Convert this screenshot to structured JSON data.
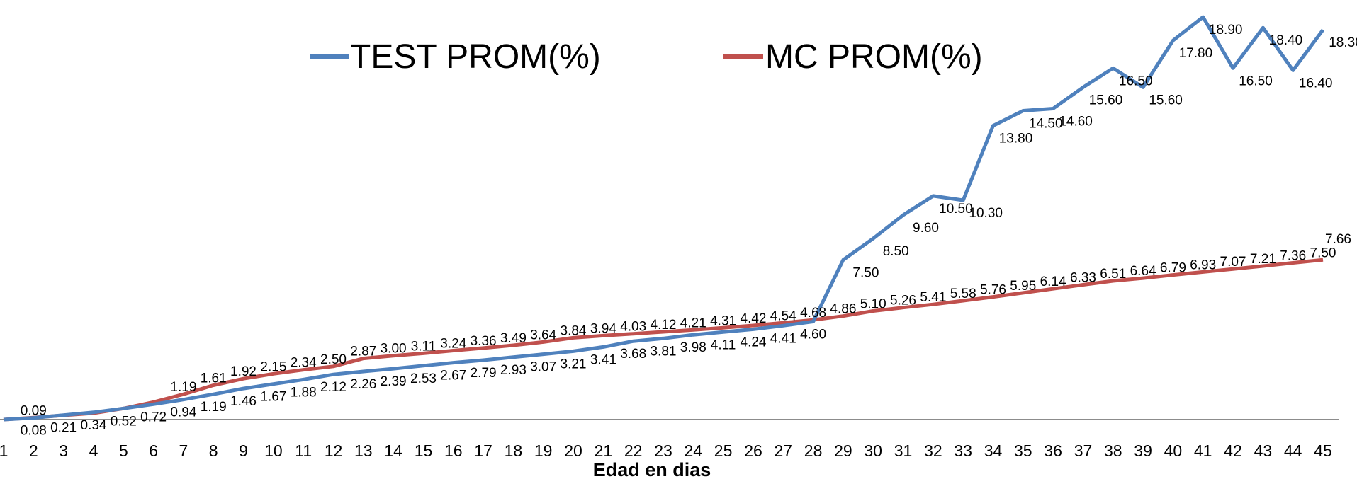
{
  "chart_data": {
    "type": "line",
    "x": [
      1,
      2,
      3,
      4,
      5,
      6,
      7,
      8,
      9,
      10,
      11,
      12,
      13,
      14,
      15,
      16,
      17,
      18,
      19,
      20,
      21,
      22,
      23,
      24,
      25,
      26,
      27,
      28,
      29,
      30,
      31,
      32,
      33,
      34,
      35,
      36,
      37,
      38,
      39,
      40,
      41,
      42,
      43,
      44,
      45
    ],
    "xlabel": "Edad en dias",
    "ylabel": "",
    "ylim": [
      0,
      20.5
    ],
    "grid": false,
    "legend_position": "top-center",
    "series": [
      {
        "name": "TEST PROM(%)",
        "color": "#4f81bd",
        "values": [
          0.0,
          0.08,
          0.21,
          0.34,
          0.52,
          0.72,
          0.94,
          1.19,
          1.46,
          1.67,
          1.88,
          2.12,
          2.26,
          2.39,
          2.53,
          2.67,
          2.79,
          2.93,
          3.07,
          3.21,
          3.41,
          3.68,
          3.81,
          3.98,
          4.11,
          4.24,
          4.41,
          4.6,
          7.5,
          8.5,
          9.6,
          10.5,
          10.3,
          13.8,
          14.5,
          14.6,
          15.6,
          16.5,
          15.6,
          17.8,
          18.9,
          16.5,
          18.4,
          16.4,
          18.3
        ],
        "labels": [
          "",
          "0.08",
          "0.21",
          "0.34",
          "0.52",
          "0.72",
          "0.94",
          "1.19",
          "1.46",
          "1.67",
          "1.88",
          "2.12",
          "2.26",
          "2.39",
          "2.53",
          "2.67",
          "2.79",
          "2.93",
          "3.07",
          "3.21",
          "3.41",
          "3.68",
          "3.81",
          "3.98",
          "4.11",
          "4.24",
          "4.41",
          "4.60",
          "7.50",
          "8.50",
          "9.60",
          "10.50",
          "10.30",
          "13.80",
          "14.50",
          "14.60",
          "15.60",
          "16.50",
          "15.60",
          "17.80",
          "18.90",
          "16.50",
          "18.40",
          "16.40",
          "18.30"
        ]
      },
      {
        "name": "MC PROM(%)",
        "color": "#c0504d",
        "values": [
          0.0,
          0.09,
          0.2,
          0.3,
          0.52,
          0.82,
          1.19,
          1.61,
          1.92,
          2.15,
          2.34,
          2.5,
          2.87,
          3.0,
          3.11,
          3.24,
          3.36,
          3.49,
          3.64,
          3.84,
          3.94,
          4.03,
          4.12,
          4.21,
          4.31,
          4.42,
          4.54,
          4.68,
          4.86,
          5.1,
          5.26,
          5.41,
          5.58,
          5.76,
          5.95,
          6.14,
          6.33,
          6.51,
          6.64,
          6.79,
          6.93,
          7.07,
          7.21,
          7.36,
          7.5
        ],
        "labels": [
          "",
          "0.09",
          "",
          "",
          "",
          "",
          "1.19",
          "1.61",
          "1.92",
          "2.15",
          "2.34",
          "2.50",
          "2.87",
          "3.00",
          "3.11",
          "3.24",
          "3.36",
          "3.49",
          "3.64",
          "3.84",
          "3.94",
          "4.03",
          "4.12",
          "4.21",
          "4.31",
          "4.42",
          "4.54",
          "4.68",
          "4.86",
          "5.10",
          "5.26",
          "5.41",
          "5.58",
          "5.76",
          "5.95",
          "6.14",
          "6.33",
          "6.51",
          "6.64",
          "6.79",
          "6.93",
          "7.07",
          "7.21",
          "7.36",
          "7.50"
        ]
      }
    ],
    "annotations": [
      "7.66"
    ]
  }
}
